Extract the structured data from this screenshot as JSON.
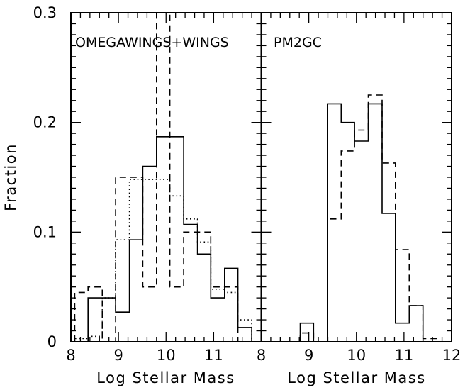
{
  "chart_data": [
    {
      "type": "step",
      "panel_label": "OMEGAWINGS+WINGS",
      "xlabel": "Log Stellar Mass",
      "ylabel": "Fraction",
      "xlim": [
        8,
        12
      ],
      "ylim": [
        0,
        0.3
      ],
      "x_ticks": [
        "8",
        "9",
        "10",
        "11"
      ],
      "y_ticks": [
        "0",
        "0.1",
        "0.2",
        "0.3"
      ],
      "grid": false,
      "series": [
        {
          "style": "solid",
          "edges": [
            8.08,
            8.36,
            8.66,
            8.94,
            9.23,
            9.51,
            9.8,
            10.08,
            10.37,
            10.66,
            10.94,
            11.23,
            11.51,
            11.8
          ],
          "values": [
            0.0,
            0.04,
            0.04,
            0.027,
            0.093,
            0.16,
            0.187,
            0.187,
            0.107,
            0.08,
            0.04,
            0.067,
            0.013
          ]
        },
        {
          "style": "dashed",
          "edges": [
            8.08,
            8.36,
            8.66,
            8.94,
            9.23,
            9.51,
            9.8,
            10.08,
            10.37,
            10.66,
            10.94,
            11.23,
            11.51,
            11.8
          ],
          "values": [
            0.045,
            0.05,
            0.0,
            0.15,
            0.15,
            0.05,
            0.3,
            0.05,
            0.1,
            0.1,
            0.05,
            0.05,
            0.0
          ]
        },
        {
          "style": "dotted",
          "edges": [
            8.08,
            8.36,
            8.66,
            8.94,
            9.23,
            9.51,
            9.8,
            10.08,
            10.37,
            10.66,
            10.94,
            11.23,
            11.51,
            11.8
          ],
          "values": [
            0.003,
            0.005,
            0.04,
            0.093,
            0.148,
            0.148,
            0.148,
            0.133,
            0.112,
            0.091,
            0.048,
            0.045,
            0.02
          ]
        }
      ]
    },
    {
      "type": "step",
      "panel_label": "PM2GC",
      "xlabel": "Log Stellar Mass",
      "ylabel": "",
      "xlim": [
        8,
        12
      ],
      "ylim": [
        0,
        0.3
      ],
      "x_ticks": [
        "8",
        "9",
        "10",
        "11",
        "12"
      ],
      "grid": false,
      "series": [
        {
          "style": "solid",
          "edges": [
            8.5,
            8.82,
            9.1,
            9.39,
            9.68,
            9.96,
            10.25,
            10.54,
            10.82,
            11.11,
            11.4
          ],
          "values": [
            0.0,
            0.017,
            0.0,
            0.217,
            0.2,
            0.183,
            0.217,
            0.117,
            0.017,
            0.033
          ]
        },
        {
          "style": "dashed",
          "edges": [
            8.82,
            9.1,
            9.39,
            9.68,
            9.96,
            10.25,
            10.54,
            10.82,
            11.11,
            11.4,
            11.68
          ],
          "values": [
            0.008,
            0.0,
            0.112,
            0.174,
            0.193,
            0.225,
            0.163,
            0.084,
            0.033,
            0.003
          ]
        }
      ]
    }
  ]
}
